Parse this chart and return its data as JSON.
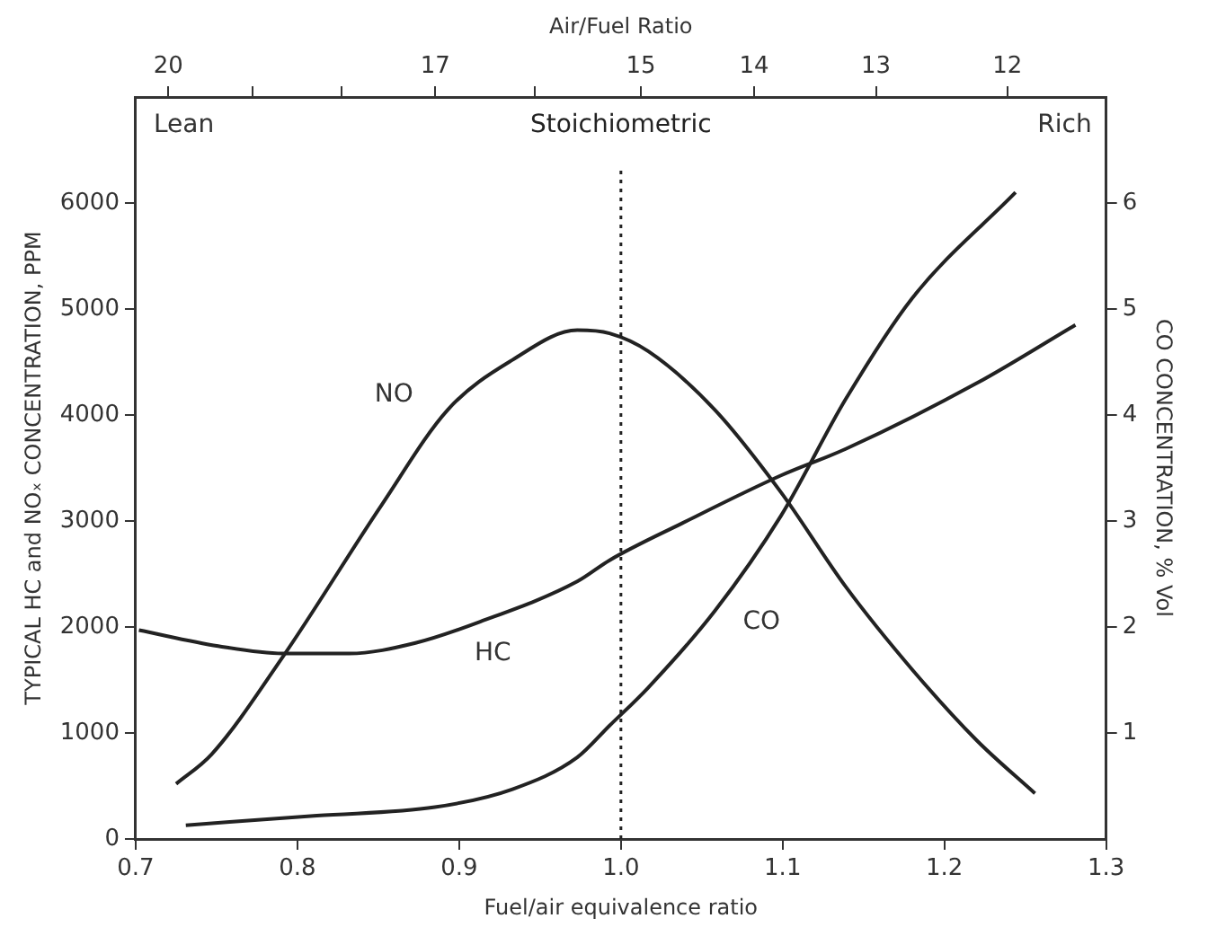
{
  "chart_data": {
    "type": "line",
    "xlabel": "Fuel/air equivalence ratio",
    "x2label": "Air/Fuel Ratio",
    "ylabel": "TYPICAL HC and NOₓ CONCENTRATION, PPM",
    "y2label": "CO CONCENTRATION, % Vol",
    "xlim": [
      0.7,
      1.3
    ],
    "xticks": [
      0.7,
      0.8,
      0.9,
      {
        "value": 1,
        "label": "1.0"
      },
      1.1,
      1.2,
      1.3
    ],
    "x2lim": [
      20.4,
      11.3
    ],
    "log": "x2",
    "x2ticks": [
      20,
      {
        "value": 19,
        "label": null
      },
      {
        "value": 18,
        "label": null
      },
      17,
      {
        "value": 16,
        "label": null
      },
      15,
      14,
      13,
      12
    ],
    "ylim": [
      0,
      7000
    ],
    "yticks": [
      0,
      1000,
      2000,
      3000,
      4000,
      5000,
      6000
    ],
    "y2lim": [
      0,
      7
    ],
    "y2ticks": [
      1,
      2,
      3,
      4,
      5,
      6
    ],
    "grid": false,
    "legend": false,
    "marker": "none",
    "line_style": "solid",
    "series": [
      {
        "name": "NO",
        "color": "#222222",
        "x": [
          0.725,
          0.747,
          0.791,
          0.852,
          0.893,
          0.933,
          0.973,
          0.993,
          1.017,
          1.058,
          1.099,
          1.139,
          1.18,
          1.22,
          1.256
        ],
        "values": [
          520,
          800,
          1720,
          3150,
          4050,
          4520,
          4800,
          4770,
          4600,
          4050,
          3270,
          2380,
          1600,
          930,
          430
        ]
      },
      {
        "name": "HC",
        "color": "#222222",
        "x": [
          0.702,
          0.751,
          0.791,
          0.832,
          0.873,
          0.913,
          0.973,
          0.993,
          1.038,
          1.099,
          1.139,
          1.22,
          1.281
        ],
        "values": [
          1970,
          1820,
          1750,
          1750,
          1850,
          2050,
          2430,
          2630,
          2980,
          3430,
          3680,
          4300,
          4850
        ]
      },
      {
        "name": "CO",
        "color": "#222222",
        "axis": "y2",
        "x": [
          0.731,
          0.812,
          0.885,
          0.933,
          0.973,
          0.993,
          1.017,
          1.058,
          1.099,
          1.139,
          1.18,
          1.244
        ],
        "values": [
          0.13,
          0.22,
          0.3,
          0.47,
          0.77,
          1.07,
          1.43,
          2.15,
          3.05,
          4.15,
          5.1,
          6.1
        ]
      }
    ],
    "ref_lines": [
      {
        "axis": "x",
        "value": 1,
        "label": "Stoichiometric",
        "line_style": "dotted",
        "color": "#222222"
      }
    ],
    "annotations": [
      "Lean",
      "Rich"
    ]
  }
}
